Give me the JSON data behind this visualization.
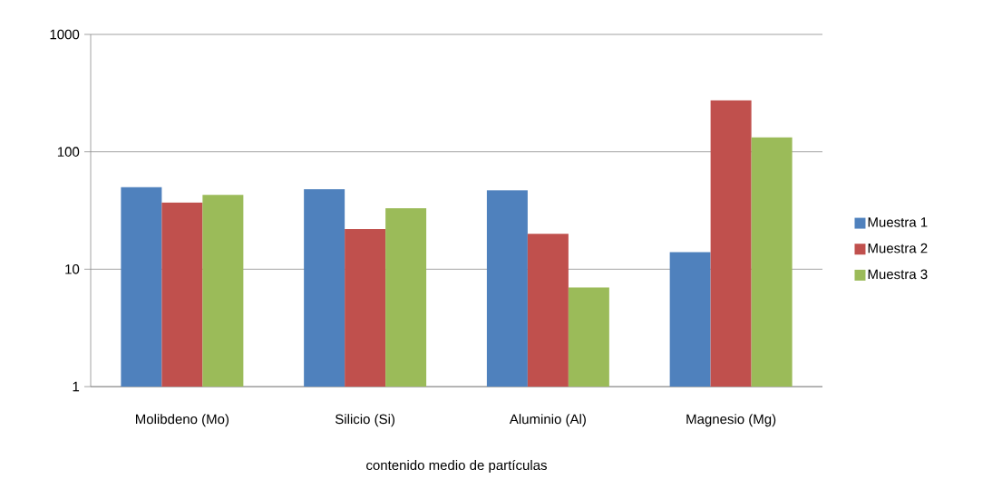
{
  "chart_data": {
    "type": "bar",
    "xlabel": "contenido medio de partículas",
    "categories": [
      "Molibdeno (Mo)",
      "Silicio (Si)",
      "Aluminio (Al)",
      "Magnesio (Mg)"
    ],
    "series": [
      {
        "name": "Muestra 1",
        "color": "#4f81bd",
        "values": [
          50,
          48,
          47,
          14
        ]
      },
      {
        "name": "Muestra 2",
        "color": "#c0504d",
        "values": [
          37,
          22,
          20,
          275
        ]
      },
      {
        "name": "Muestra 3",
        "color": "#9bbb59",
        "values": [
          43,
          33,
          7,
          133
        ]
      }
    ],
    "ylim": [
      1,
      1000
    ],
    "yticks": [
      1,
      10,
      100,
      1000
    ],
    "log": "y",
    "grid": "y",
    "legend": "right"
  }
}
